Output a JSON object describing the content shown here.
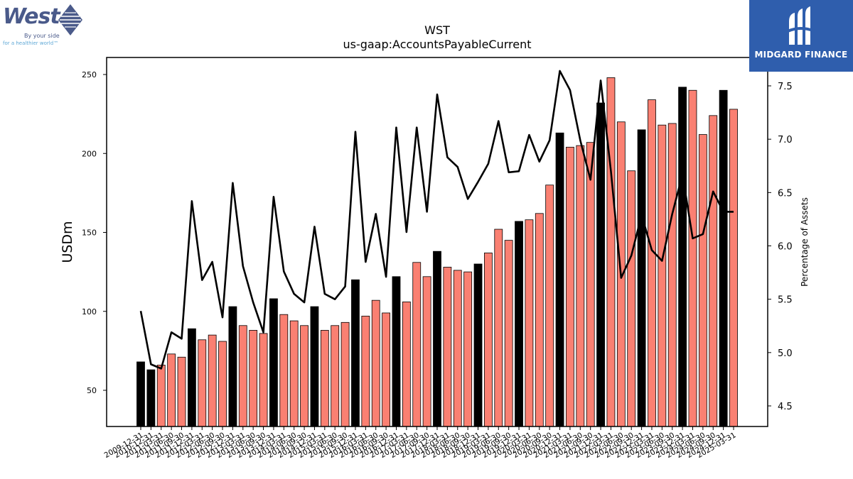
{
  "logos": {
    "left_word": "West",
    "left_tag1": "By your side",
    "left_tag2": "for a healthier world™",
    "right_text": "MIDGARD FINANCE"
  },
  "chart_data": {
    "type": "bar",
    "title": "WST",
    "subtitle": "us-gaap:AccountsPayableCurrent",
    "ylabel": "USDm",
    "y2label": "Percentage of Assets",
    "ylim": [
      28,
      250
    ],
    "y2lim": [
      4.3,
      7.7
    ],
    "yticks": [
      50,
      100,
      150,
      200,
      250
    ],
    "y2ticks": [
      4.5,
      5.0,
      5.5,
      6.0,
      6.5,
      7.0,
      7.5
    ],
    "colors": {
      "annual": "#000000",
      "quarterly": "#fa8072",
      "line": "#000000"
    },
    "categories": [
      "2009-12-31",
      "2010-12-31",
      "2011-03-31",
      "2011-06-30",
      "2011-09-30",
      "2011-12-31",
      "2012-03-31",
      "2012-06-30",
      "2012-09-30",
      "2012-12-31",
      "2013-03-31",
      "2013-06-30",
      "2013-09-30",
      "2013-12-31",
      "2014-03-31",
      "2014-06-30",
      "2014-09-30",
      "2014-12-31",
      "2015-03-31",
      "2015-06-30",
      "2015-09-30",
      "2015-12-31",
      "2016-03-31",
      "2016-06-30",
      "2016-09-30",
      "2016-12-31",
      "2017-03-31",
      "2017-06-30",
      "2017-09-30",
      "2017-12-31",
      "2018-03-31",
      "2018-06-30",
      "2018-09-30",
      "2018-12-31",
      "2019-03-31",
      "2019-06-30",
      "2019-09-30",
      "2019-12-31",
      "2020-03-31",
      "2020-06-30",
      "2020-09-30",
      "2020-12-31",
      "2021-03-31",
      "2021-06-30",
      "2021-09-30",
      "2021-12-31",
      "2022-03-31",
      "2022-06-30",
      "2022-09-30",
      "2022-12-31",
      "2023-03-31",
      "2023-06-30",
      "2023-09-30",
      "2023-12-31",
      "2024-03-31",
      "2024-06-30",
      "2024-09-30",
      "2024-12-31",
      "2025-03-31"
    ],
    "values": [
      68,
      63,
      66,
      73,
      71,
      89,
      82,
      85,
      81,
      103,
      91,
      88,
      86,
      108,
      98,
      94,
      91,
      103,
      88,
      91,
      93,
      120,
      97,
      107,
      99,
      122,
      106,
      131,
      122,
      138,
      128,
      126,
      125,
      130,
      137,
      152,
      145,
      157,
      158,
      162,
      180,
      213,
      204,
      205,
      207,
      232,
      248,
      220,
      189,
      215,
      234,
      218,
      219,
      242,
      240,
      212,
      224,
      240,
      228
    ],
    "annual": [
      true,
      true,
      false,
      false,
      false,
      true,
      false,
      false,
      false,
      true,
      false,
      false,
      false,
      true,
      false,
      false,
      false,
      true,
      false,
      false,
      false,
      true,
      false,
      false,
      false,
      true,
      false,
      false,
      false,
      true,
      false,
      false,
      false,
      true,
      false,
      false,
      false,
      true,
      false,
      false,
      false,
      true,
      false,
      false,
      false,
      true,
      false,
      false,
      false,
      true,
      false,
      false,
      false,
      true,
      false,
      false,
      false,
      true,
      false
    ],
    "pct_of_assets": [
      5.39,
      4.89,
      4.85,
      5.19,
      5.13,
      6.42,
      5.68,
      5.85,
      5.33,
      6.59,
      5.81,
      5.47,
      5.19,
      6.46,
      5.76,
      5.55,
      5.47,
      6.18,
      5.55,
      5.5,
      5.62,
      7.07,
      5.85,
      6.3,
      5.71,
      7.11,
      6.13,
      7.11,
      6.32,
      7.42,
      6.83,
      6.74,
      6.44,
      6.6,
      6.77,
      7.17,
      6.69,
      6.7,
      7.04,
      6.79,
      6.99,
      7.64,
      7.46,
      6.99,
      6.62,
      7.55,
      6.7,
      5.7,
      5.91,
      6.29,
      5.96,
      5.86,
      6.3,
      6.67,
      6.07,
      6.11,
      6.51,
      6.32,
      6.32
    ]
  }
}
